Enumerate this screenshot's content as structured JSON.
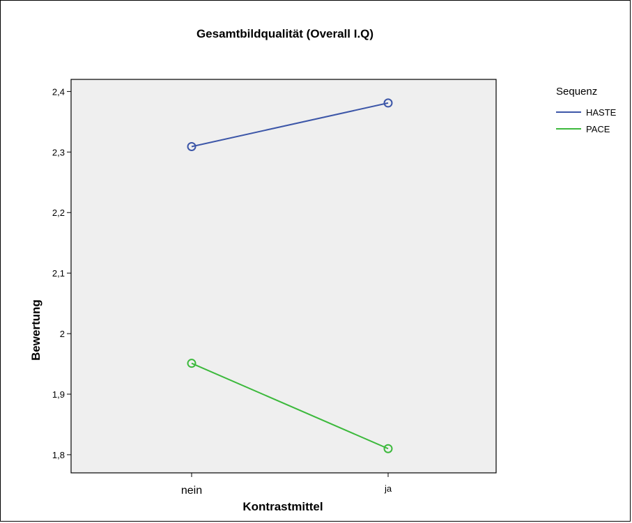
{
  "chart_data": {
    "type": "line",
    "title": "Gesamtbildqualität (Overall I.Q)",
    "xlabel": "Kontrastmittel",
    "ylabel": "Bewertung",
    "categories": [
      "nein",
      "ja"
    ],
    "yticks": [
      "1,8",
      "1,9",
      "2",
      "2,1",
      "2,2",
      "2,3",
      "2,4"
    ],
    "ylim": [
      1.77,
      2.42
    ],
    "legend_title": "Sequenz",
    "legend_position": "right",
    "grid": false,
    "series": [
      {
        "name": "HASTE",
        "color": "#3c56a8",
        "values": [
          2.309,
          2.381
        ]
      },
      {
        "name": "PACE",
        "color": "#3cb93c",
        "values": [
          1.951,
          1.81
        ]
      }
    ]
  }
}
